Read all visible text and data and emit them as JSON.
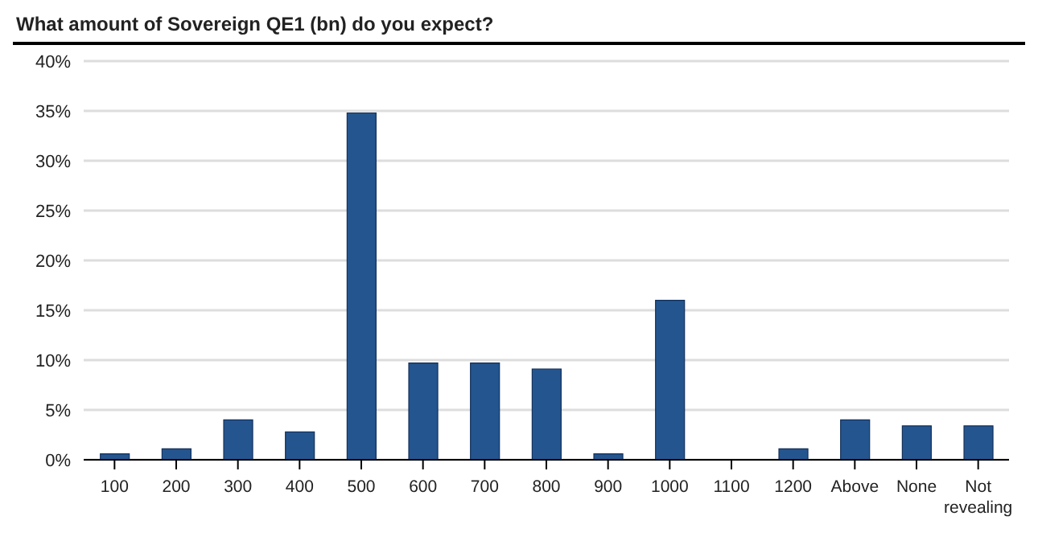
{
  "chart_data": {
    "type": "bar",
    "title": "What amount of Sovereign QE1 (bn) do you expect?",
    "categories": [
      "100",
      "200",
      "300",
      "400",
      "500",
      "600",
      "700",
      "800",
      "900",
      "1000",
      "1100",
      "1200",
      "Above",
      "None",
      "Not revealing"
    ],
    "values": [
      0.6,
      1.1,
      4.0,
      2.8,
      34.8,
      9.7,
      9.7,
      9.1,
      0.6,
      16.0,
      0,
      1.1,
      4.0,
      3.4,
      3.4
    ],
    "color": "#24558f",
    "ylim": [
      0,
      40
    ],
    "yticks": [
      {
        "value": 0,
        "label": "0%"
      },
      {
        "value": 5,
        "label": "5%"
      },
      {
        "value": 10,
        "label": "10%"
      },
      {
        "value": 15,
        "label": "15%"
      },
      {
        "value": 20,
        "label": "20%"
      },
      {
        "value": 25,
        "label": "25%"
      },
      {
        "value": 30,
        "label": "30%"
      },
      {
        "value": 35,
        "label": "35%"
      },
      {
        "value": 40,
        "label": "40%"
      }
    ],
    "grid": "y",
    "legend": false
  }
}
